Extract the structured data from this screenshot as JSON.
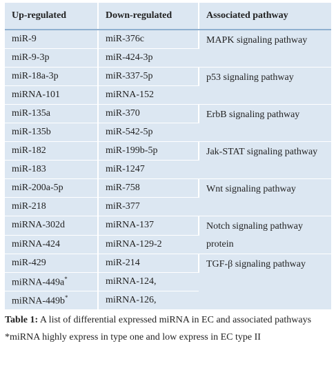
{
  "table": {
    "header": [
      "Up-regulated",
      "Down-regulated",
      "Associated pathway"
    ],
    "groups": [
      {
        "rows": [
          [
            "miR-9",
            "miR-376c"
          ],
          [
            "miR-9-3p",
            "miR-424-3p"
          ]
        ],
        "pathway": "MAPK signaling pathway"
      },
      {
        "rows": [
          [
            "miR-18a-3p",
            "miR-337-5p"
          ],
          [
            "miRNA-101",
            "miRNA-152"
          ]
        ],
        "pathway": "p53 signaling pathway"
      },
      {
        "rows": [
          [
            "miR-135a",
            "miR-370"
          ],
          [
            "miR-135b",
            "miR-542-5p"
          ]
        ],
        "pathway": "ErbB signaling pathway"
      },
      {
        "rows": [
          [
            "miR-182",
            "miR-199b-5p"
          ],
          [
            "miR-183",
            "miR-1247"
          ]
        ],
        "pathway": "Jak-STAT signaling pathway"
      },
      {
        "rows": [
          [
            "miR-200a-5p",
            "miR-758"
          ],
          [
            "miR-218",
            "miR-377"
          ]
        ],
        "pathway": "Wnt signaling pathway"
      },
      {
        "rows": [
          [
            "miRNA-302d",
            "miRNA-137"
          ],
          [
            "miRNA-424",
            "miRNA-129-2"
          ]
        ],
        "pathway": "Notch signaling pathway protein"
      },
      {
        "rows": [
          [
            "miR-429",
            "miR-214"
          ],
          [
            {
              "text": "miRNA-449a",
              "sup": "*"
            },
            "miRNA-124,"
          ],
          [
            {
              "text": "miRNA-449b",
              "sup": "*"
            },
            "miRNA-126,"
          ]
        ],
        "pathway": "TGF-β signaling pathway"
      }
    ]
  },
  "caption": {
    "label": "Table 1:",
    "text": "A list of differential expressed miRNA in EC and associated pathways"
  },
  "footnote": "*miRNA highly express in type one and low express in EC type II"
}
